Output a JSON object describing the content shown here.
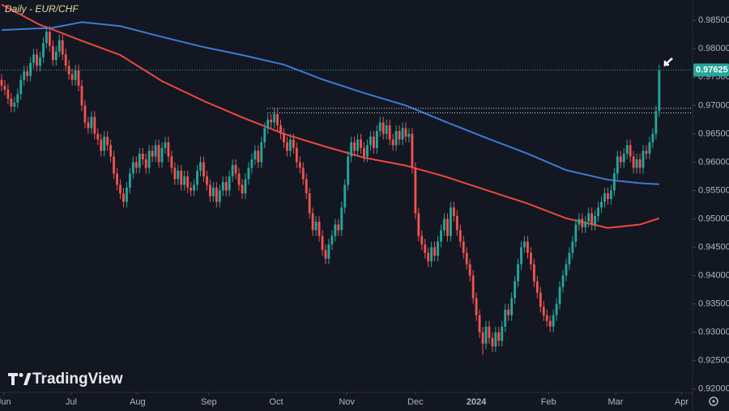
{
  "chart_data": {
    "type": "candlestick",
    "title": "Daily - EUR/CHF",
    "brand": "TradingView",
    "up_color": "#26a69a",
    "down_color": "#ef5350",
    "open": [
      0.9745,
      0.9735,
      0.9728,
      0.9712,
      0.9698,
      0.9705,
      0.972,
      0.9745,
      0.976,
      0.9752,
      0.9775,
      0.979,
      0.977,
      0.9785,
      0.981,
      0.983,
      0.9805,
      0.978,
      0.9795,
      0.9815,
      0.979,
      0.977,
      0.9755,
      0.9745,
      0.9762,
      0.9735,
      0.97,
      0.967,
      0.966,
      0.968,
      0.965,
      0.964,
      0.962,
      0.9645,
      0.963,
      0.961,
      0.958,
      0.956,
      0.9545,
      0.953,
      0.9555,
      0.958,
      0.96,
      0.959,
      0.9615,
      0.9605,
      0.959,
      0.962,
      0.961,
      0.963,
      0.96,
      0.9625,
      0.9635,
      0.961,
      0.959,
      0.957,
      0.9585,
      0.956,
      0.9575,
      0.9555,
      0.955,
      0.956,
      0.9585,
      0.96,
      0.9575,
      0.956,
      0.954,
      0.9555,
      0.953,
      0.955,
      0.9565,
      0.955,
      0.9575,
      0.9595,
      0.958,
      0.956,
      0.9545,
      0.957,
      0.959,
      0.9605,
      0.962,
      0.96,
      0.9635,
      0.966,
      0.9675,
      0.967,
      0.9685,
      0.9665,
      0.965,
      0.9635,
      0.962,
      0.964,
      0.9625,
      0.96,
      0.959,
      0.957,
      0.9545,
      0.951,
      0.948,
      0.9495,
      0.947,
      0.9445,
      0.943,
      0.9455,
      0.947,
      0.949,
      0.948,
      0.952,
      0.956,
      0.961,
      0.9635,
      0.962,
      0.964,
      0.9625,
      0.961,
      0.963,
      0.9645,
      0.9625,
      0.9655,
      0.967,
      0.965,
      0.9665,
      0.964,
      0.963,
      0.9655,
      0.964,
      0.966,
      0.9645,
      0.965,
      0.959,
      0.951,
      0.947,
      0.9455,
      0.944,
      0.9425,
      0.945,
      0.9435,
      0.946,
      0.948,
      0.95,
      0.947,
      0.952,
      0.9505,
      0.948,
      0.946,
      0.944,
      0.942,
      0.94,
      0.936,
      0.933,
      0.93,
      0.928,
      0.931,
      0.929,
      0.9275,
      0.93,
      0.9285,
      0.931,
      0.934,
      0.933,
      0.936,
      0.939,
      0.942,
      0.945,
      0.946,
      0.944,
      0.942,
      0.939,
      0.937,
      0.9345,
      0.933,
      0.932,
      0.931,
      0.933,
      0.935,
      0.938,
      0.94,
      0.942,
      0.944,
      0.946,
      0.949,
      0.95,
      0.9485,
      0.9495,
      0.951,
      0.949,
      0.9505,
      0.952,
      0.953,
      0.9545,
      0.9535,
      0.955,
      0.958,
      0.961,
      0.96,
      0.9615,
      0.963,
      0.961,
      0.959,
      0.9605,
      0.959,
      0.962,
      0.9615,
      0.9635,
      0.965,
      0.969
    ],
    "high": [
      0.9755,
      0.9745,
      0.9738,
      0.9722,
      0.9715,
      0.973,
      0.9755,
      0.977,
      0.977,
      0.9785,
      0.98,
      0.98,
      0.9795,
      0.982,
      0.984,
      0.984,
      0.9815,
      0.9805,
      0.9825,
      0.9825,
      0.98,
      0.978,
      0.9765,
      0.9772,
      0.9772,
      0.9745,
      0.971,
      0.968,
      0.969,
      0.969,
      0.966,
      0.965,
      0.9655,
      0.9655,
      0.964,
      0.962,
      0.959,
      0.957,
      0.9555,
      0.9565,
      0.959,
      0.961,
      0.961,
      0.9625,
      0.9625,
      0.9615,
      0.963,
      0.963,
      0.964,
      0.964,
      0.9635,
      0.9645,
      0.9645,
      0.962,
      0.96,
      0.9595,
      0.9595,
      0.9585,
      0.9585,
      0.9565,
      0.957,
      0.9595,
      0.961,
      0.961,
      0.9585,
      0.957,
      0.9565,
      0.9565,
      0.956,
      0.9575,
      0.9575,
      0.9585,
      0.9605,
      0.9605,
      0.959,
      0.957,
      0.958,
      0.96,
      0.9615,
      0.963,
      0.963,
      0.9645,
      0.967,
      0.9685,
      0.9685,
      0.9695,
      0.9695,
      0.9675,
      0.966,
      0.9645,
      0.965,
      0.965,
      0.9635,
      0.961,
      0.96,
      0.958,
      0.9555,
      0.952,
      0.9505,
      0.9505,
      0.948,
      0.9455,
      0.9465,
      0.948,
      0.95,
      0.95,
      0.953,
      0.957,
      0.962,
      0.9645,
      0.9645,
      0.965,
      0.965,
      0.9635,
      0.964,
      0.9655,
      0.9655,
      0.9665,
      0.968,
      0.968,
      0.9675,
      0.9675,
      0.965,
      0.9665,
      0.9665,
      0.967,
      0.967,
      0.966,
      0.966,
      0.96,
      0.952,
      0.948,
      0.9465,
      0.945,
      0.946,
      0.946,
      0.947,
      0.949,
      0.951,
      0.951,
      0.953,
      0.953,
      0.9515,
      0.949,
      0.947,
      0.945,
      0.943,
      0.941,
      0.937,
      0.934,
      0.931,
      0.932,
      0.932,
      0.93,
      0.931,
      0.931,
      0.932,
      0.935,
      0.935,
      0.937,
      0.94,
      0.943,
      0.946,
      0.947,
      0.947,
      0.945,
      0.943,
      0.94,
      0.938,
      0.9355,
      0.934,
      0.933,
      0.934,
      0.936,
      0.939,
      0.941,
      0.943,
      0.945,
      0.947,
      0.95,
      0.951,
      0.951,
      0.9505,
      0.952,
      0.952,
      0.9515,
      0.953,
      0.954,
      0.9555,
      0.9555,
      0.956,
      0.959,
      0.962,
      0.962,
      0.9625,
      0.964,
      0.964,
      0.962,
      0.9615,
      0.9615,
      0.963,
      0.963,
      0.9645,
      0.966,
      0.97,
      0.9772
    ],
    "low": [
      0.9725,
      0.9718,
      0.9702,
      0.9688,
      0.9688,
      0.9695,
      0.971,
      0.9735,
      0.9742,
      0.9742,
      0.9765,
      0.976,
      0.976,
      0.9775,
      0.98,
      0.9795,
      0.977,
      0.977,
      0.9785,
      0.978,
      0.976,
      0.9745,
      0.9735,
      0.9735,
      0.9725,
      0.969,
      0.966,
      0.965,
      0.965,
      0.964,
      0.963,
      0.961,
      0.961,
      0.962,
      0.96,
      0.957,
      0.955,
      0.9535,
      0.952,
      0.952,
      0.9545,
      0.957,
      0.958,
      0.958,
      0.9595,
      0.958,
      0.958,
      0.96,
      0.96,
      0.959,
      0.959,
      0.9615,
      0.96,
      0.958,
      0.956,
      0.956,
      0.955,
      0.955,
      0.9545,
      0.954,
      0.954,
      0.955,
      0.9575,
      0.9565,
      0.955,
      0.953,
      0.953,
      0.952,
      0.952,
      0.954,
      0.954,
      0.954,
      0.9565,
      0.957,
      0.955,
      0.9535,
      0.9535,
      0.956,
      0.958,
      0.9595,
      0.959,
      0.959,
      0.9625,
      0.965,
      0.966,
      0.966,
      0.9655,
      0.964,
      0.9625,
      0.961,
      0.961,
      0.9615,
      0.959,
      0.958,
      0.956,
      0.9535,
      0.95,
      0.947,
      0.947,
      0.946,
      0.9435,
      0.942,
      0.942,
      0.9445,
      0.946,
      0.947,
      0.947,
      0.951,
      0.955,
      0.96,
      0.961,
      0.961,
      0.9615,
      0.96,
      0.96,
      0.962,
      0.9615,
      0.9615,
      0.9645,
      0.964,
      0.964,
      0.963,
      0.962,
      0.962,
      0.963,
      0.963,
      0.9635,
      0.9635,
      0.958,
      0.95,
      0.946,
      0.9445,
      0.943,
      0.9415,
      0.9415,
      0.9425,
      0.9425,
      0.945,
      0.947,
      0.946,
      0.946,
      0.9495,
      0.947,
      0.945,
      0.943,
      0.941,
      0.939,
      0.935,
      0.932,
      0.929,
      0.926,
      0.927,
      0.928,
      0.9265,
      0.9265,
      0.9275,
      0.9275,
      0.93,
      0.932,
      0.932,
      0.935,
      0.938,
      0.941,
      0.944,
      0.943,
      0.941,
      0.938,
      0.936,
      0.9335,
      0.932,
      0.931,
      0.93,
      0.93,
      0.932,
      0.934,
      0.937,
      0.939,
      0.941,
      0.943,
      0.945,
      0.948,
      0.9475,
      0.9475,
      0.9485,
      0.948,
      0.948,
      0.9495,
      0.951,
      0.952,
      0.9525,
      0.9525,
      0.954,
      0.957,
      0.959,
      0.959,
      0.9605,
      0.96,
      0.958,
      0.958,
      0.958,
      0.958,
      0.9605,
      0.9605,
      0.9625,
      0.964,
      0.968
    ],
    "close": [
      0.9735,
      0.9728,
      0.9712,
      0.9698,
      0.9705,
      0.972,
      0.9745,
      0.976,
      0.9752,
      0.9775,
      0.979,
      0.977,
      0.9785,
      0.981,
      0.983,
      0.9805,
      0.978,
      0.9795,
      0.9815,
      0.979,
      0.977,
      0.9755,
      0.9745,
      0.9762,
      0.9735,
      0.97,
      0.967,
      0.966,
      0.968,
      0.965,
      0.964,
      0.962,
      0.9645,
      0.963,
      0.961,
      0.958,
      0.956,
      0.9545,
      0.953,
      0.9555,
      0.958,
      0.96,
      0.959,
      0.9615,
      0.9605,
      0.959,
      0.962,
      0.961,
      0.963,
      0.96,
      0.9625,
      0.9635,
      0.961,
      0.959,
      0.957,
      0.9585,
      0.956,
      0.9575,
      0.9555,
      0.955,
      0.956,
      0.9585,
      0.96,
      0.9575,
      0.956,
      0.954,
      0.9555,
      0.953,
      0.955,
      0.9565,
      0.955,
      0.9575,
      0.9595,
      0.958,
      0.956,
      0.9545,
      0.957,
      0.959,
      0.9605,
      0.962,
      0.96,
      0.9635,
      0.966,
      0.9675,
      0.967,
      0.9685,
      0.9665,
      0.965,
      0.9635,
      0.962,
      0.964,
      0.9625,
      0.96,
      0.959,
      0.957,
      0.9545,
      0.951,
      0.948,
      0.9495,
      0.947,
      0.9445,
      0.943,
      0.9455,
      0.947,
      0.949,
      0.948,
      0.952,
      0.956,
      0.961,
      0.9635,
      0.962,
      0.964,
      0.9625,
      0.961,
      0.963,
      0.9645,
      0.9625,
      0.9655,
      0.967,
      0.965,
      0.9665,
      0.964,
      0.963,
      0.9655,
      0.964,
      0.966,
      0.9645,
      0.965,
      0.959,
      0.951,
      0.947,
      0.9455,
      0.944,
      0.9425,
      0.945,
      0.9435,
      0.946,
      0.948,
      0.95,
      0.947,
      0.952,
      0.9505,
      0.948,
      0.946,
      0.944,
      0.942,
      0.94,
      0.936,
      0.933,
      0.93,
      0.928,
      0.931,
      0.929,
      0.9275,
      0.93,
      0.9285,
      0.931,
      0.934,
      0.933,
      0.936,
      0.939,
      0.942,
      0.945,
      0.946,
      0.944,
      0.942,
      0.939,
      0.937,
      0.9345,
      0.933,
      0.932,
      0.931,
      0.933,
      0.935,
      0.938,
      0.94,
      0.942,
      0.944,
      0.946,
      0.949,
      0.95,
      0.9485,
      0.9495,
      0.951,
      0.949,
      0.9505,
      0.952,
      0.953,
      0.9545,
      0.9535,
      0.955,
      0.958,
      0.961,
      0.96,
      0.9615,
      0.963,
      0.961,
      0.959,
      0.9605,
      0.959,
      0.962,
      0.9615,
      0.9635,
      0.965,
      0.969,
      0.9762
    ],
    "series": [
      {
        "color": "#f0483e",
        "x": [
          0,
          12,
          15,
          25,
          37,
          50,
          63,
          75,
          88,
          100,
          113,
          126,
          138,
          151,
          164,
          176,
          189,
          199,
          205
        ],
        "values": [
          0.9878,
          0.9842,
          0.9836,
          0.9814,
          0.9789,
          0.9743,
          0.9708,
          0.9679,
          0.965,
          0.9629,
          0.9608,
          0.9594,
          0.9575,
          0.9551,
          0.9527,
          0.9501,
          0.9484,
          0.949,
          0.9501
        ]
      },
      {
        "color": "#3a7bd5",
        "x": [
          0,
          12,
          15,
          25,
          37,
          50,
          63,
          75,
          88,
          100,
          113,
          126,
          138,
          151,
          164,
          176,
          189,
          199,
          205
        ],
        "values": [
          0.9833,
          0.9836,
          0.9836,
          0.9847,
          0.984,
          0.9821,
          0.9803,
          0.9789,
          0.9772,
          0.9746,
          0.9722,
          0.97,
          0.9672,
          0.9643,
          0.9615,
          0.9586,
          0.9569,
          0.9563,
          0.9561
        ]
      }
    ],
    "levels": [
      0.9695,
      0.9687
    ],
    "last_price": 0.97625,
    "xlim": [
      -0.5,
      215.4
    ],
    "ylim": [
      0.9194,
      0.9886
    ],
    "xticks": [
      {
        "value": 0.7,
        "label": "Jun"
      },
      {
        "value": 21.7,
        "label": "Jul"
      },
      {
        "value": 42.4,
        "label": "Aug"
      },
      {
        "value": 64.6,
        "label": "Sep"
      },
      {
        "value": 85.6,
        "label": "Oct"
      },
      {
        "value": 107.6,
        "label": "Nov"
      },
      {
        "value": 129,
        "label": "Dec"
      },
      {
        "value": 148,
        "label": "2024"
      },
      {
        "value": 170.5,
        "label": "Feb"
      },
      {
        "value": 191.4,
        "label": "Mar"
      },
      {
        "value": 212,
        "label": "Apr"
      }
    ],
    "yticks": [
      {
        "value": 0.92,
        "label": "0.92000"
      },
      {
        "value": 0.925,
        "label": "0.92500"
      },
      {
        "value": 0.93,
        "label": "0.93000"
      },
      {
        "value": 0.935,
        "label": "0.93500"
      },
      {
        "value": 0.94,
        "label": "0.94000"
      },
      {
        "value": 0.945,
        "label": "0.94500"
      },
      {
        "value": 0.95,
        "label": "0.95000"
      },
      {
        "value": 0.955,
        "label": "0.95500"
      },
      {
        "value": 0.96,
        "label": "0.96000"
      },
      {
        "value": 0.965,
        "label": "0.96500"
      },
      {
        "value": 0.97,
        "label": "0.97000"
      },
      {
        "value": 0.975,
        "label": "0.97500"
      },
      {
        "value": 0.98,
        "label": "0.98000"
      },
      {
        "value": 0.985,
        "label": "0.98500"
      }
    ],
    "grid": false
  }
}
